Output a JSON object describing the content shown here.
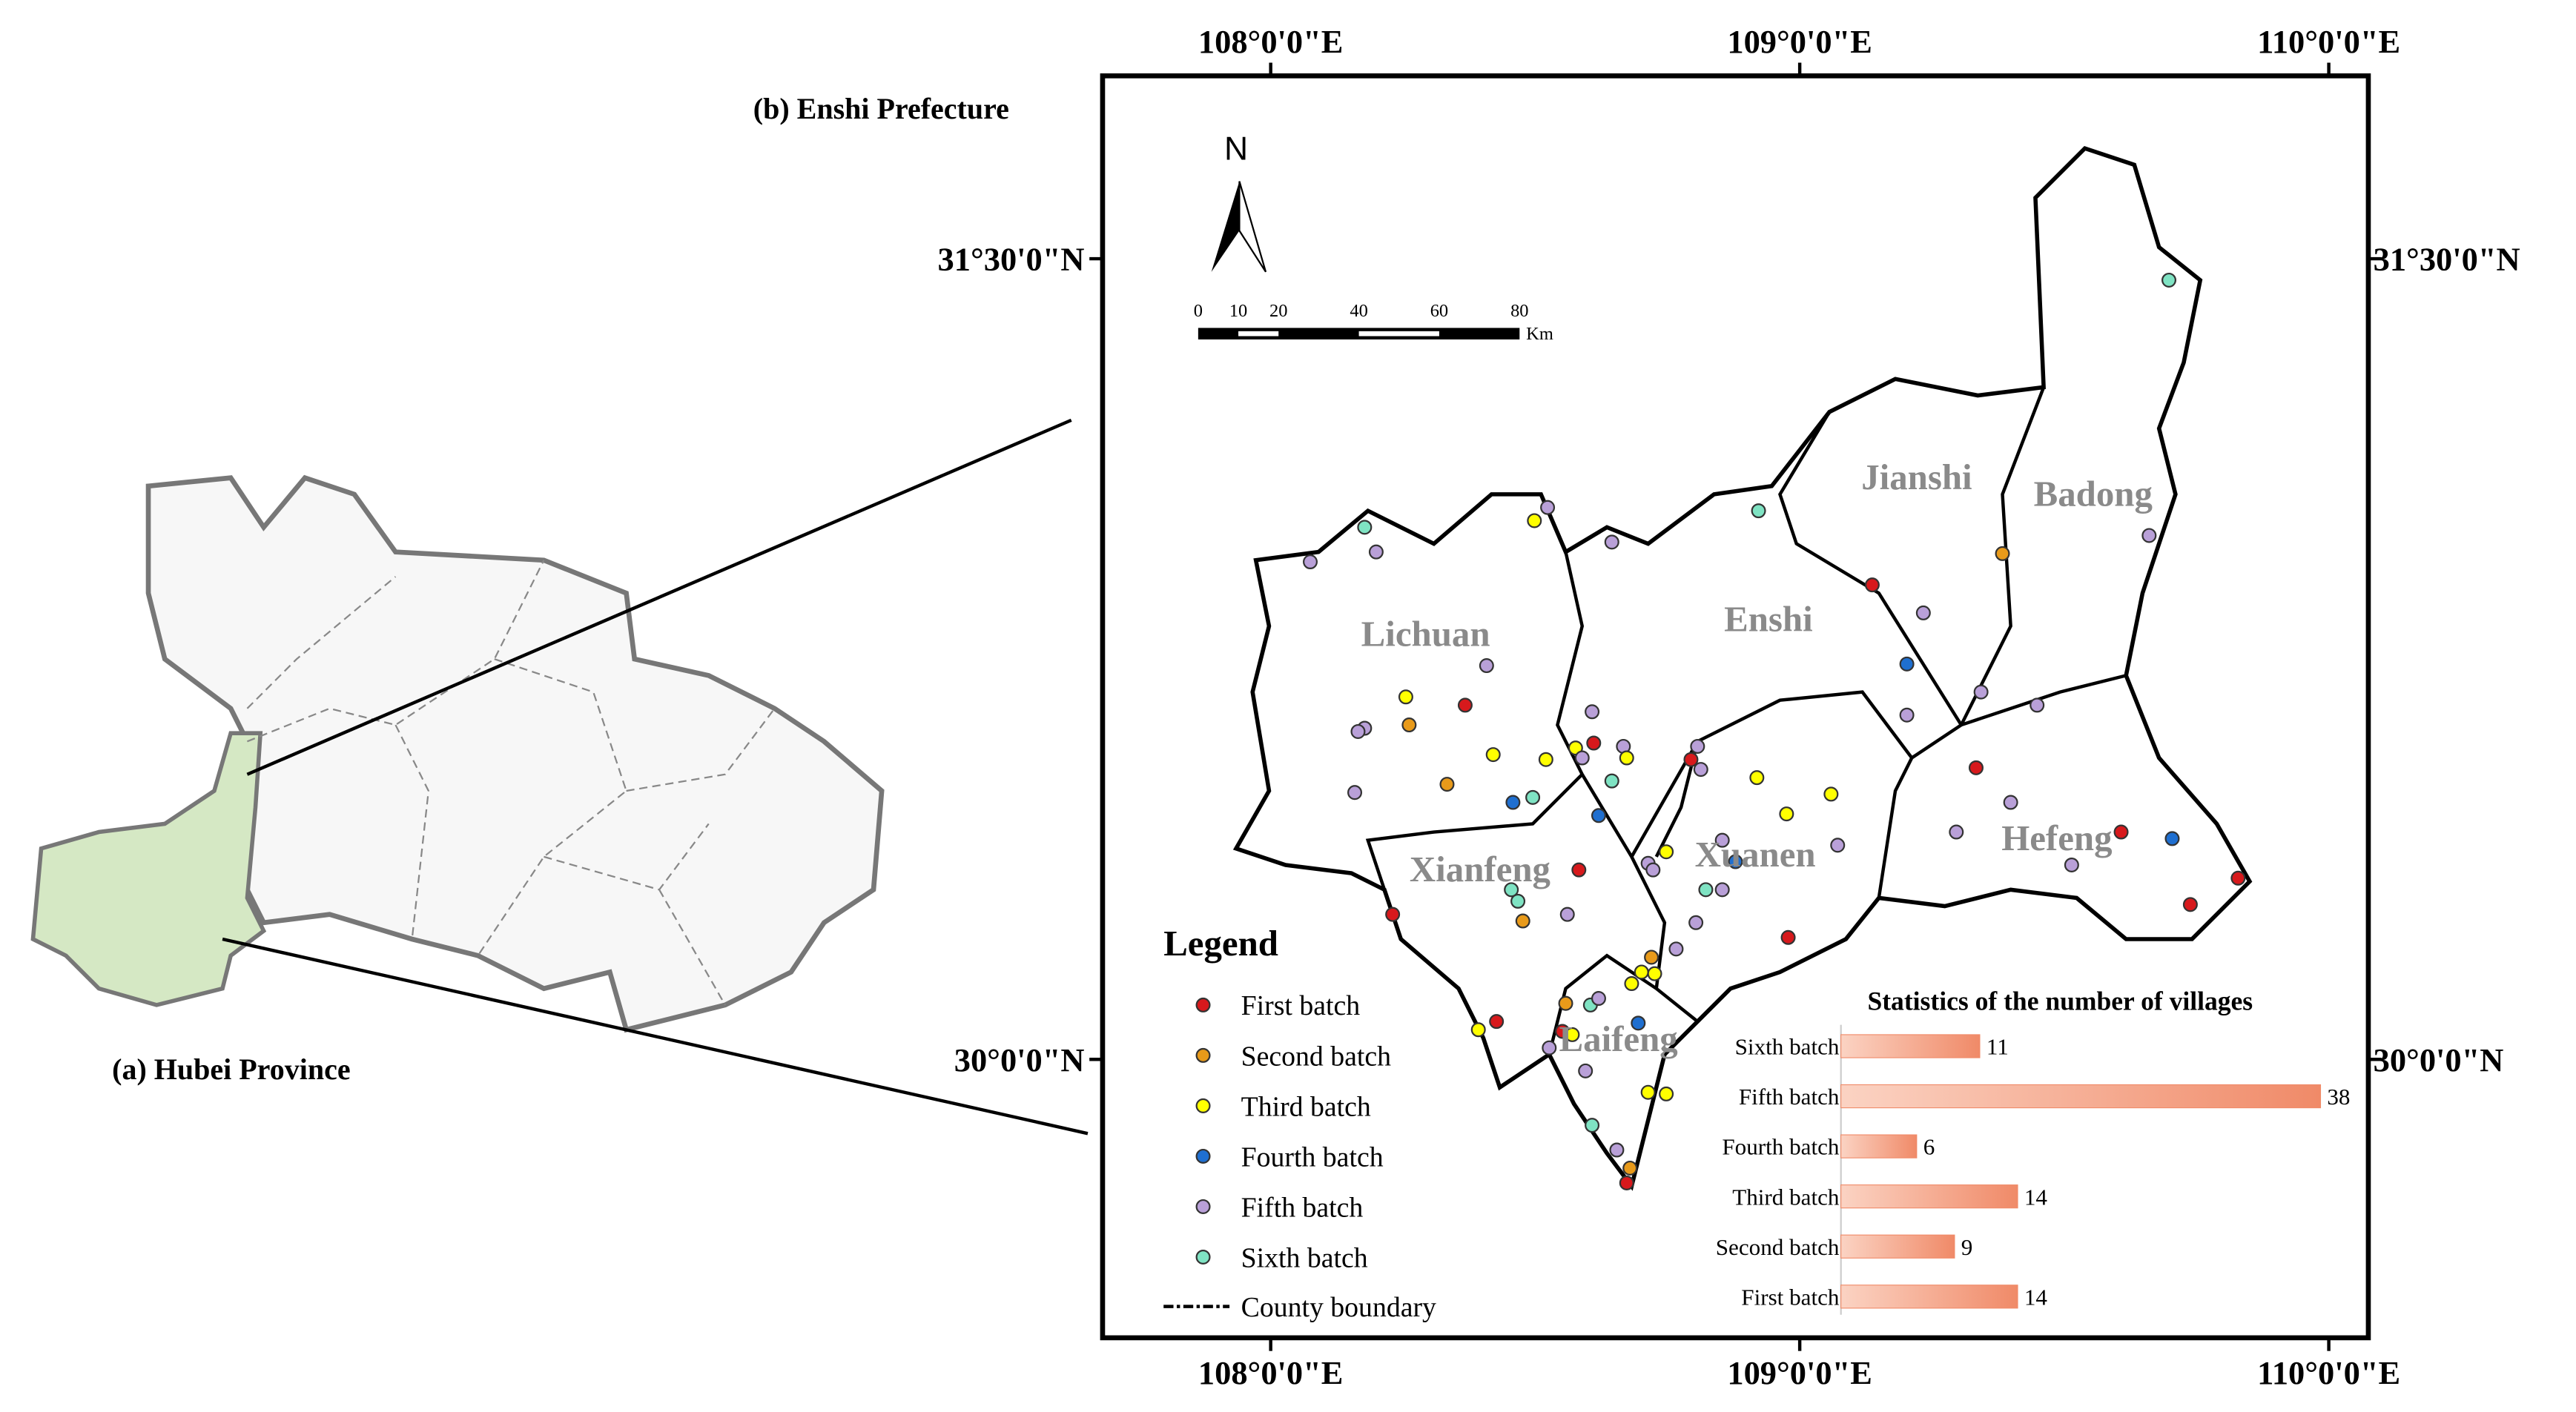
{
  "panel_a_title": "(a) Hubei Province",
  "panel_b_title": "(b) Enshi Prefecture",
  "coordinates": {
    "top": [
      "108°0'0\"E",
      "109°0'0\"E",
      "110°0'0\"E"
    ],
    "bottom": [
      "108°0'0\"E",
      "109°0'0\"E",
      "110°0'0\"E"
    ],
    "left": [
      "31°30'0\"N",
      "30°0'0\"N"
    ],
    "right": [
      "31°30'0\"N",
      "30°0'0\"N"
    ]
  },
  "north": "N",
  "scale_bar": {
    "ticks": [
      0,
      10,
      20,
      40,
      60,
      80
    ],
    "unit": "Km"
  },
  "counties": [
    "Lichuan",
    "Enshi",
    "Jianshi",
    "Badong",
    "Hefeng",
    "Xuanen",
    "Xianfeng",
    "Laifeng"
  ],
  "legend": {
    "title": "Legend",
    "items": [
      {
        "label": "First batch",
        "color": "#d7191c"
      },
      {
        "label": "Second batch",
        "color": "#e89a1a"
      },
      {
        "label": "Third batch",
        "color": "#ffff00"
      },
      {
        "label": "Fourth batch",
        "color": "#1f6fd0"
      },
      {
        "label": "Fifth batch",
        "color": "#b9a0d8"
      },
      {
        "label": "Sixth batch",
        "color": "#7fe3c3"
      }
    ],
    "boundary": "County boundary"
  },
  "chart_data": {
    "type": "bar",
    "orientation": "horizontal",
    "title": "Statistics of the number of villages",
    "categories": [
      "Sixth batch",
      "Fifth batch",
      "Fourth batch",
      "Third batch",
      "Second batch",
      "First batch"
    ],
    "values": [
      11,
      38,
      6,
      14,
      9,
      14
    ],
    "color": "#f08a68"
  }
}
